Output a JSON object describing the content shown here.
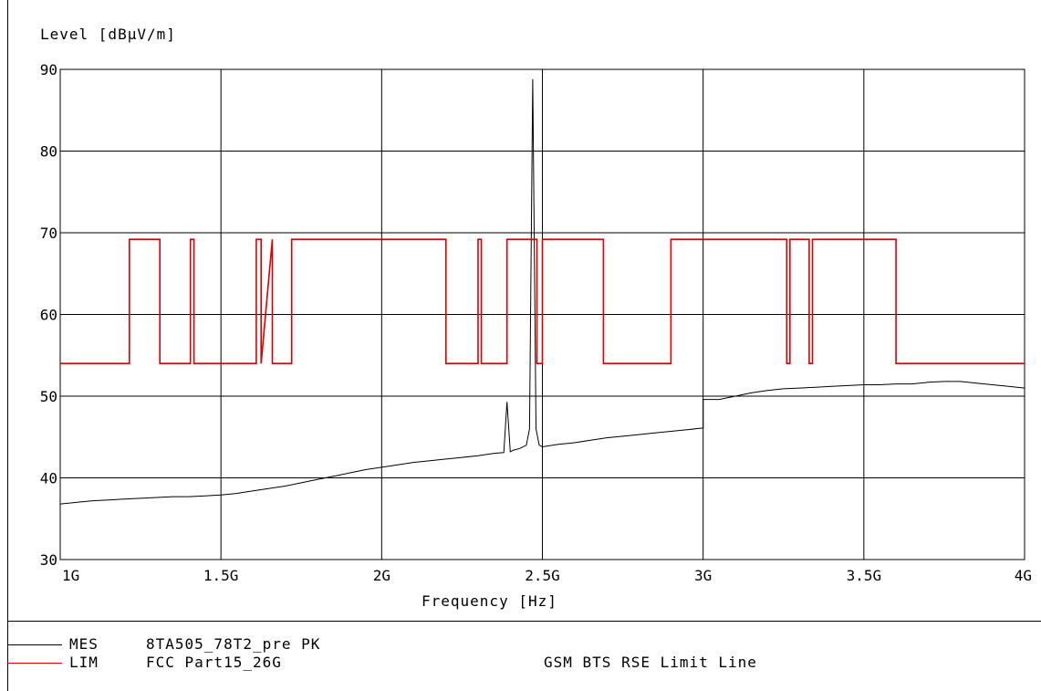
{
  "chart_data": {
    "type": "line",
    "ylabel": "Level [dBµV/m]",
    "xlabel": "Frequency [Hz]",
    "x_scale": "linear",
    "xlim": [
      1.0,
      4.0
    ],
    "ylim": [
      30,
      90
    ],
    "grid": true,
    "xticks": [
      1.0,
      1.5,
      2.0,
      2.5,
      3.0,
      3.5,
      4.0
    ],
    "xtick_labels": [
      "1G",
      "1.5G",
      "2G",
      "2.5G",
      "3G",
      "3.5G",
      "4G"
    ],
    "yticks": [
      30,
      40,
      50,
      60,
      70,
      80,
      90
    ],
    "ytick_labels": [
      "30",
      "40",
      "50",
      "60",
      "70",
      "80",
      "90"
    ],
    "series": [
      {
        "name": "MES",
        "color": "#000000",
        "x": [
          1.0,
          1.05,
          1.1,
          1.15,
          1.2,
          1.25,
          1.3,
          1.35,
          1.4,
          1.45,
          1.5,
          1.55,
          1.6,
          1.65,
          1.7,
          1.75,
          1.8,
          1.85,
          1.9,
          1.95,
          2.0,
          2.05,
          2.1,
          2.15,
          2.2,
          2.25,
          2.3,
          2.35,
          2.38,
          2.39,
          2.4,
          2.41,
          2.43,
          2.45,
          2.46,
          2.47,
          2.48,
          2.49,
          2.5,
          2.55,
          2.6,
          2.65,
          2.7,
          2.75,
          2.8,
          2.85,
          2.9,
          2.95,
          3.0,
          3.0,
          3.05,
          3.1,
          3.15,
          3.2,
          3.25,
          3.3,
          3.35,
          3.4,
          3.45,
          3.5,
          3.55,
          3.6,
          3.65,
          3.7,
          3.75,
          3.8,
          3.85,
          3.9,
          3.95,
          4.0
        ],
        "y": [
          36.8,
          37.0,
          37.2,
          37.3,
          37.4,
          37.5,
          37.6,
          37.7,
          37.7,
          37.8,
          37.9,
          38.1,
          38.4,
          38.7,
          39.0,
          39.4,
          39.8,
          40.2,
          40.6,
          41.0,
          41.3,
          41.6,
          41.9,
          42.1,
          42.3,
          42.5,
          42.7,
          43.0,
          43.1,
          49.3,
          43.2,
          43.4,
          43.6,
          44.0,
          46.0,
          88.8,
          46.0,
          44.0,
          43.8,
          44.1,
          44.3,
          44.6,
          44.9,
          45.1,
          45.3,
          45.5,
          45.7,
          45.9,
          46.1,
          49.6,
          49.6,
          50.0,
          50.4,
          50.7,
          50.9,
          51.0,
          51.1,
          51.2,
          51.3,
          51.4,
          51.4,
          51.5,
          51.5,
          51.7,
          51.8,
          51.8,
          51.6,
          51.4,
          51.2,
          51.0
        ]
      },
      {
        "name": "LIM",
        "color": "#dd0000",
        "x": [
          1.0,
          1.215,
          1.215,
          1.31,
          1.31,
          1.405,
          1.405,
          1.416,
          1.416,
          1.61,
          1.61,
          1.625,
          1.625,
          1.66,
          1.66,
          1.72,
          1.72,
          1.73,
          1.73,
          2.2,
          2.2,
          2.3,
          2.3,
          2.31,
          2.31,
          2.39,
          2.39,
          2.483,
          2.483,
          2.5,
          2.5,
          2.69,
          2.69,
          2.9,
          2.9,
          3.26,
          3.26,
          3.27,
          3.27,
          3.33,
          3.33,
          3.34,
          3.34,
          3.36,
          3.36,
          3.6,
          3.6,
          4.0
        ],
        "y": [
          54,
          54,
          69.2,
          69.2,
          54,
          54,
          69.2,
          69.2,
          54,
          54,
          69.2,
          69.2,
          54,
          69.2,
          54,
          54,
          69.2,
          69.2,
          69.2,
          69.2,
          54,
          54,
          69.2,
          69.2,
          54,
          54,
          69.2,
          69.2,
          54,
          54,
          69.2,
          69.2,
          54,
          54,
          69.2,
          69.2,
          54,
          54,
          69.2,
          69.2,
          54,
          54,
          69.2,
          69.2,
          69.2,
          69.2,
          54,
          54
        ]
      }
    ]
  },
  "legend": [
    {
      "key": "MES",
      "text": "8TA505_78T2_pre PK",
      "color": "#000000"
    },
    {
      "key": "LIM",
      "text": "FCC Part15_26G",
      "extra": "GSM BTS RSE Limit Line",
      "color": "#dd0000"
    }
  ]
}
